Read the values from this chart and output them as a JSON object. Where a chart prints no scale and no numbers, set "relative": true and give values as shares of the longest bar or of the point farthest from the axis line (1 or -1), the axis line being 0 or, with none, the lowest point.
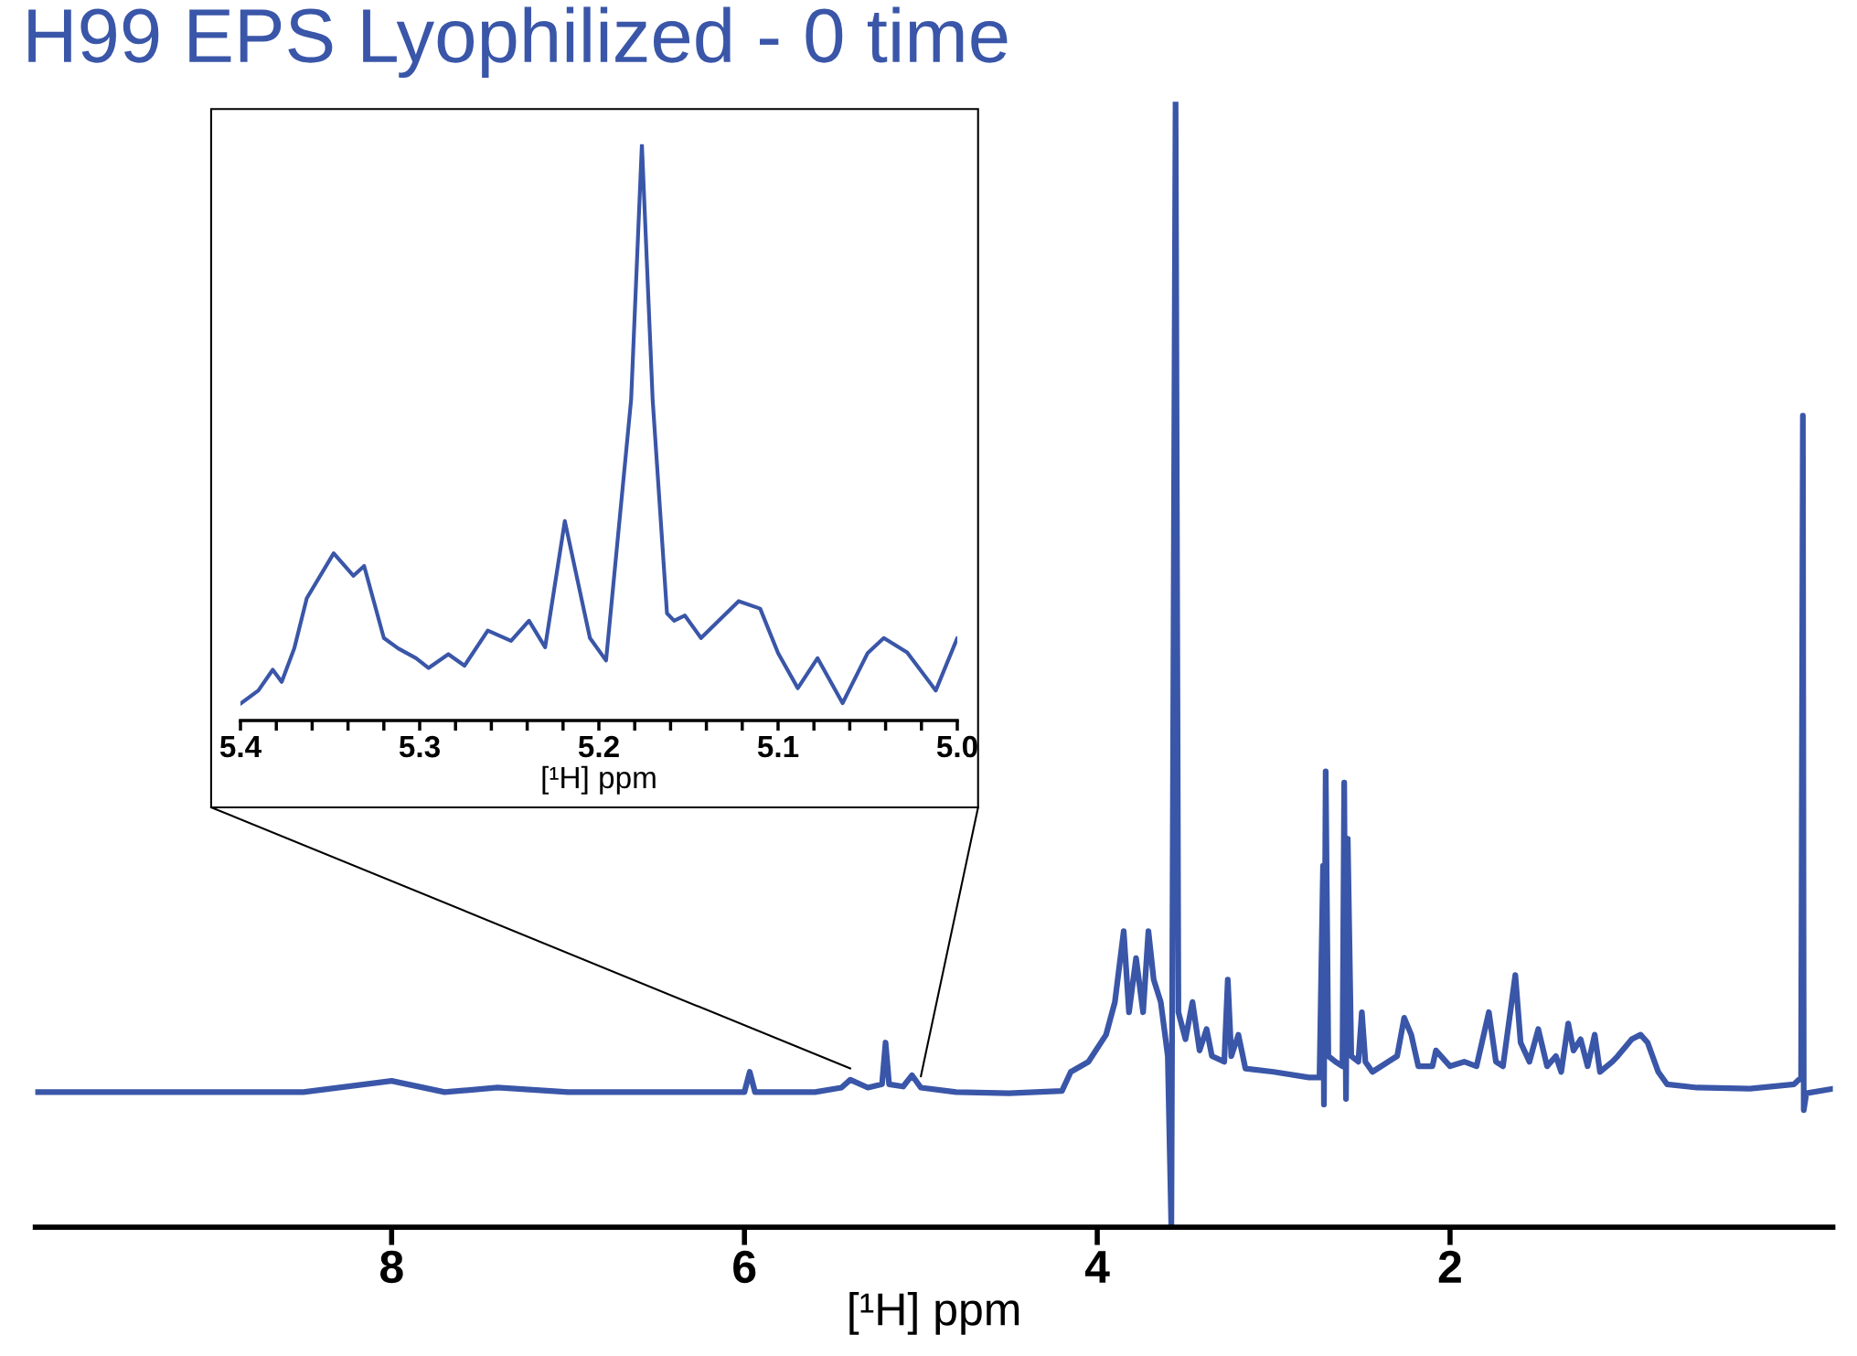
{
  "chart_data": [
    {
      "type": "line",
      "title": "H99 EPS Lyophilized - 0 time",
      "xlabel": "[¹H] ppm",
      "relative": true,
      "xlim": [
        10.02,
        -0.17
      ],
      "xticks": [
        8,
        6,
        4,
        2
      ],
      "series": [
        {
          "color": "#3a56a8",
          "x": [
            10.02,
            9.5,
            9.0,
            8.5,
            8.0,
            7.7,
            7.4,
            7.0,
            6.5,
            6.0,
            5.97,
            5.94,
            5.6,
            5.45,
            5.4,
            5.3,
            5.22,
            5.2,
            5.18,
            5.1,
            5.05,
            5.0,
            4.8,
            4.5,
            4.2,
            4.15,
            4.05,
            3.95,
            3.9,
            3.85,
            3.82,
            3.78,
            3.74,
            3.71,
            3.68,
            3.64,
            3.6,
            3.58,
            3.556,
            3.54,
            3.5,
            3.46,
            3.42,
            3.38,
            3.35,
            3.28,
            3.26,
            3.24,
            3.2,
            3.16,
            3.0,
            2.8,
            2.74,
            2.72,
            2.715,
            2.705,
            2.69,
            2.65,
            2.61,
            2.6,
            2.59,
            2.58,
            2.56,
            2.52,
            2.5,
            2.48,
            2.44,
            2.3,
            2.26,
            2.22,
            2.18,
            2.1,
            2.08,
            2.0,
            1.92,
            1.85,
            1.78,
            1.74,
            1.7,
            1.63,
            1.6,
            1.55,
            1.5,
            1.45,
            1.4,
            1.37,
            1.33,
            1.3,
            1.26,
            1.22,
            1.18,
            1.15,
            1.08,
            1.05,
            0.97,
            0.92,
            0.88,
            0.82,
            0.77,
            0.6,
            0.3,
            0.05,
            0.01,
            0.0,
            -0.005,
            -0.02,
            -0.17
          ],
          "values": [
            0.12,
            0.12,
            0.12,
            0.12,
            0.13,
            0.12,
            0.124,
            0.12,
            0.12,
            0.12,
            0.138,
            0.12,
            0.12,
            0.124,
            0.131,
            0.124,
            0.127,
            0.164,
            0.127,
            0.125,
            0.135,
            0.124,
            0.12,
            0.119,
            0.121,
            0.138,
            0.147,
            0.171,
            0.2,
            0.263,
            0.191,
            0.239,
            0.191,
            0.263,
            0.22,
            0.2,
            0.152,
            0.0,
            1.0,
            0.191,
            0.167,
            0.2,
            0.157,
            0.176,
            0.152,
            0.147,
            0.22,
            0.152,
            0.171,
            0.141,
            0.138,
            0.133,
            0.133,
            0.321,
            0.109,
            0.405,
            0.152,
            0.147,
            0.143,
            0.395,
            0.114,
            0.345,
            0.152,
            0.147,
            0.191,
            0.147,
            0.138,
            0.152,
            0.186,
            0.171,
            0.143,
            0.143,
            0.157,
            0.143,
            0.147,
            0.143,
            0.191,
            0.147,
            0.143,
            0.224,
            0.164,
            0.147,
            0.176,
            0.143,
            0.152,
            0.138,
            0.181,
            0.157,
            0.167,
            0.143,
            0.171,
            0.138,
            0.147,
            0.152,
            0.167,
            0.171,
            0.164,
            0.138,
            0.127,
            0.124,
            0.123,
            0.127,
            0.133,
            0.721,
            0.104,
            0.119,
            0.123
          ]
        }
      ]
    },
    {
      "type": "line",
      "xlabel": "[¹H] ppm",
      "relative": true,
      "xlim": [
        5.4,
        5.0
      ],
      "xticks": [
        5.4,
        {
          "value": 5.38,
          "label": null
        },
        {
          "value": 5.36,
          "label": null
        },
        {
          "value": 5.34,
          "label": null
        },
        {
          "value": 5.32,
          "label": null
        },
        5.3,
        {
          "value": 5.28,
          "label": null
        },
        {
          "value": 5.26,
          "label": null
        },
        {
          "value": 5.24,
          "label": null
        },
        {
          "value": 5.22,
          "label": null
        },
        5.2,
        {
          "value": 5.18,
          "label": null
        },
        {
          "value": 5.16,
          "label": null
        },
        {
          "value": 5.14,
          "label": null
        },
        {
          "value": 5.12,
          "label": null
        },
        5.1,
        {
          "value": 5.08,
          "label": null
        },
        {
          "value": 5.06,
          "label": null
        },
        {
          "value": 5.04,
          "label": null
        },
        {
          "value": 5.02,
          "label": null
        },
        {
          "value": 5.0,
          "label": "5.0"
        }
      ],
      "series": [
        {
          "color": "#3a56a8",
          "x": [
            5.4,
            5.39,
            5.382,
            5.377,
            5.37,
            5.363,
            5.348,
            5.337,
            5.331,
            5.32,
            5.312,
            5.302,
            5.295,
            5.284,
            5.275,
            5.262,
            5.249,
            5.239,
            5.23,
            5.219,
            5.205,
            5.196,
            5.182,
            5.176,
            5.17,
            5.162,
            5.158,
            5.152,
            5.143,
            5.122,
            5.11,
            5.1,
            5.089,
            5.078,
            5.064,
            5.05,
            5.041,
            5.028,
            5.012,
            5.0
          ],
          "values": [
            0.029,
            0.052,
            0.088,
            0.067,
            0.125,
            0.212,
            0.29,
            0.251,
            0.268,
            0.143,
            0.125,
            0.108,
            0.091,
            0.115,
            0.095,
            0.156,
            0.138,
            0.173,
            0.127,
            0.346,
            0.143,
            0.104,
            0.557,
            1.0,
            0.557,
            0.186,
            0.173,
            0.182,
            0.143,
            0.207,
            0.194,
            0.117,
            0.056,
            0.108,
            0.03,
            0.117,
            0.143,
            0.118,
            0.052,
            0.143
          ]
        }
      ]
    }
  ]
}
